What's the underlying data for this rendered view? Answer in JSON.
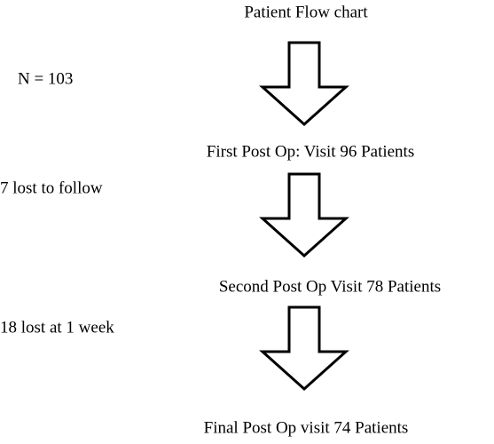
{
  "title": "Patient Flow chart",
  "notes": [
    "N = 103",
    "7 lost to follow",
    "18 lost at 1 week"
  ],
  "steps": [
    "First Post Op: Visit 96 Patients",
    "Second Post Op Visit 78 Patients",
    "Final Post Op visit 74 Patients"
  ]
}
